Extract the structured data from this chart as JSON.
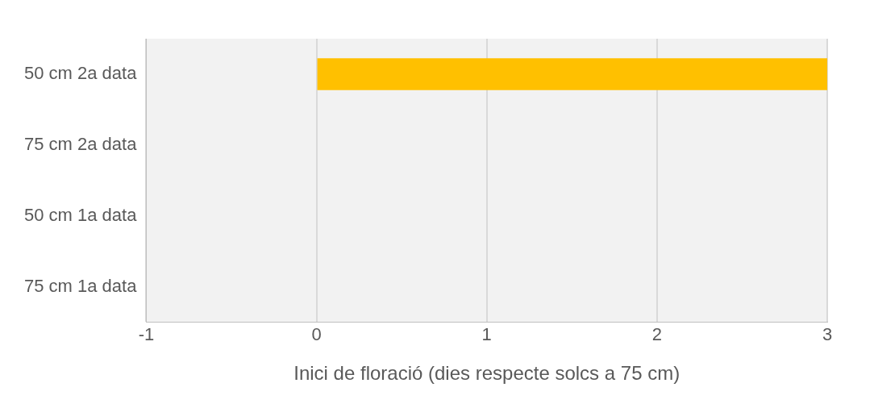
{
  "chart_data": {
    "type": "bar",
    "orientation": "horizontal",
    "categories": [
      "50 cm 2a data",
      "75 cm 2a data",
      "50 cm 1a data",
      "75 cm 1a data"
    ],
    "values": [
      3,
      0,
      0,
      0
    ],
    "color": "#ffc000",
    "xlim": [
      -1,
      3
    ],
    "xticks": [
      -1,
      0,
      1,
      2,
      3
    ],
    "grid": "x",
    "legend": false,
    "xlabel": "Inici de floració (dies respecte solcs a 75 cm)"
  }
}
